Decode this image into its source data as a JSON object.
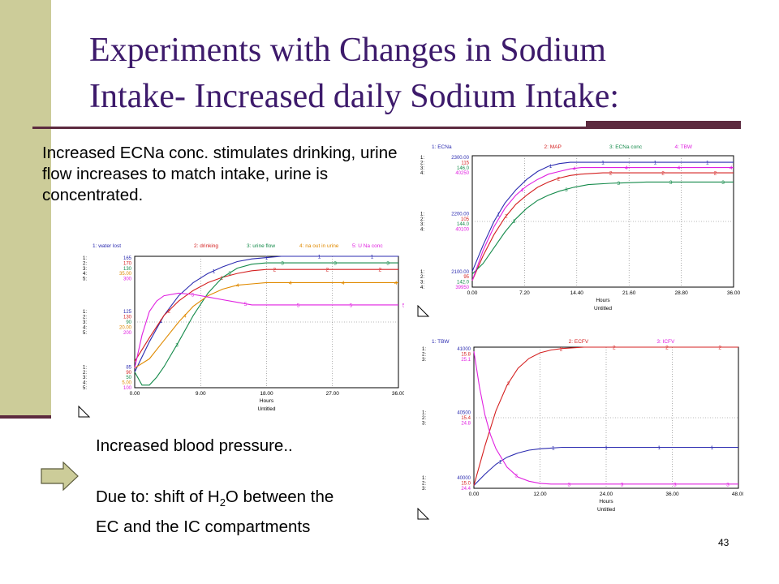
{
  "slide": {
    "title_line1": "Experiments with Changes in Sodium",
    "title_line2": "Intake- Increased daily Sodium Intake:",
    "intro_text": "Increased ECNa conc. stimulates drinking, urine flow increases to match intake, urine is concentrated.",
    "bp_text": "Increased blood pressure..",
    "due_prefix": "Due to: shift of H",
    "due_sub": "2",
    "due_mid": "O between the",
    "due_line2": "EC and the IC compartments",
    "page_number": "43"
  },
  "colors": {
    "title": "#3d1a6b",
    "sidebar": "#cccc99",
    "rule": "#5c2a3f",
    "series1": "#2b2bb0",
    "series2": "#d42020",
    "series3": "#148a4a",
    "series4": "#e020e0",
    "series5": "#e08a00"
  },
  "chart_data": [
    {
      "id": "left",
      "type": "line",
      "xlabel": "Hours",
      "footer": "Untitled",
      "xlim": [
        0,
        36
      ],
      "x_ticks": [
        "0.00",
        "9.00",
        "18.00",
        "27.00",
        "36.00"
      ],
      "legend": [
        {
          "label": "1: water lost",
          "color": "#2b2bb0"
        },
        {
          "label": "2: drinking",
          "color": "#d42020"
        },
        {
          "label": "3: urine flow",
          "color": "#148a4a"
        },
        {
          "label": "4: na out in urine",
          "color": "#e08a00"
        },
        {
          "label": "5: U Na conc",
          "color": "#e020e0"
        }
      ],
      "y_tick_groups": [
        {
          "labels": [
            "1:",
            "2:",
            "3:",
            "4:",
            "5:"
          ],
          "values": [
            "165",
            "170",
            "130",
            "35.00",
            "300"
          ]
        },
        {
          "labels": [
            "1:",
            "2:",
            "3:",
            "4:",
            "5:"
          ],
          "values": [
            "125",
            "130",
            "90",
            "20.00",
            "200"
          ]
        },
        {
          "labels": [
            "1:",
            "2:",
            "3:",
            "4:",
            "5:"
          ],
          "values": [
            "85",
            "90",
            "50",
            "5.00",
            "100"
          ]
        }
      ],
      "series": [
        {
          "name": "1",
          "color": "#2b2bb0",
          "x": [
            0,
            2,
            4,
            6,
            8,
            10,
            12,
            14,
            16,
            18,
            20,
            24,
            30,
            36
          ],
          "y": [
            0.12,
            0.35,
            0.55,
            0.7,
            0.8,
            0.87,
            0.92,
            0.96,
            0.98,
            0.99,
            1.0,
            1.0,
            1.0,
            1.0
          ]
        },
        {
          "name": "2",
          "color": "#d42020",
          "x": [
            0,
            2,
            4,
            6,
            8,
            10,
            12,
            14,
            16,
            18,
            20,
            24,
            30,
            36
          ],
          "y": [
            0.2,
            0.38,
            0.55,
            0.66,
            0.74,
            0.8,
            0.84,
            0.87,
            0.89,
            0.9,
            0.9,
            0.9,
            0.9,
            0.9
          ]
        },
        {
          "name": "3",
          "color": "#148a4a",
          "x": [
            0,
            1,
            2,
            3,
            4,
            6,
            8,
            10,
            12,
            14,
            16,
            18,
            20,
            24,
            30,
            36
          ],
          "y": [
            0.12,
            0.02,
            0.02,
            0.08,
            0.16,
            0.35,
            0.55,
            0.72,
            0.84,
            0.91,
            0.94,
            0.95,
            0.95,
            0.95,
            0.95,
            0.95
          ]
        },
        {
          "name": "4",
          "color": "#e08a00",
          "x": [
            0,
            2,
            4,
            6,
            8,
            10,
            12,
            14,
            16,
            18,
            20,
            24,
            30,
            36
          ],
          "y": [
            0.15,
            0.22,
            0.36,
            0.5,
            0.62,
            0.7,
            0.75,
            0.78,
            0.79,
            0.8,
            0.8,
            0.8,
            0.8,
            0.8
          ]
        },
        {
          "name": "5",
          "color": "#e020e0",
          "x": [
            0,
            1,
            2,
            3,
            4,
            6,
            8,
            10,
            12,
            14,
            16,
            18,
            20,
            24,
            30,
            36
          ],
          "y": [
            0.15,
            0.4,
            0.58,
            0.66,
            0.7,
            0.72,
            0.71,
            0.69,
            0.67,
            0.65,
            0.63,
            0.63,
            0.63,
            0.63,
            0.63,
            0.63
          ]
        }
      ]
    },
    {
      "id": "top-right",
      "type": "line",
      "xlabel": "Hours",
      "footer": "Untitled",
      "xlim": [
        0,
        36
      ],
      "x_ticks": [
        "0.00",
        "7.20",
        "14.40",
        "21.60",
        "28.80",
        "36.00"
      ],
      "legend": [
        {
          "label": "1: ECNa",
          "color": "#2b2bb0"
        },
        {
          "label": "2: MAP",
          "color": "#d42020"
        },
        {
          "label": "3: ECNa conc",
          "color": "#148a4a"
        },
        {
          "label": "4: TBW",
          "color": "#e020e0"
        }
      ],
      "y_tick_groups": [
        {
          "labels": [
            "1:",
            "2:",
            "3:",
            "4:"
          ],
          "values": [
            "2300.00",
            "115",
            "146.0",
            "40250"
          ]
        },
        {
          "labels": [
            "1:",
            "2:",
            "3:",
            "4:"
          ],
          "values": [
            "2200.00",
            "105",
            "144.0",
            "40100"
          ]
        },
        {
          "labels": [
            "1:",
            "2:",
            "3:",
            "4:"
          ],
          "values": [
            "2100.00",
            "95",
            "142.0",
            "39950"
          ]
        }
      ],
      "series": [
        {
          "name": "1",
          "color": "#2b2bb0",
          "x": [
            0,
            1.5,
            3,
            4.5,
            6,
            7.5,
            9,
            10.5,
            12,
            13.5,
            15,
            18,
            24,
            30,
            36
          ],
          "y": [
            0.12,
            0.32,
            0.5,
            0.64,
            0.74,
            0.82,
            0.88,
            0.92,
            0.94,
            0.95,
            0.95,
            0.95,
            0.95,
            0.95,
            0.95
          ]
        },
        {
          "name": "2",
          "color": "#d42020",
          "x": [
            0,
            1.5,
            3,
            4.5,
            6,
            7.5,
            9,
            10.5,
            12,
            13.5,
            15,
            18,
            24,
            30,
            36
          ],
          "y": [
            0.05,
            0.24,
            0.4,
            0.53,
            0.63,
            0.7,
            0.76,
            0.8,
            0.83,
            0.85,
            0.86,
            0.87,
            0.87,
            0.87,
            0.87
          ]
        },
        {
          "name": "3",
          "color": "#148a4a",
          "x": [
            0,
            1.5,
            3,
            4.5,
            6,
            7.5,
            9,
            10.5,
            12,
            14,
            16,
            19,
            24,
            30,
            36
          ],
          "y": [
            0.1,
            0.18,
            0.3,
            0.42,
            0.52,
            0.6,
            0.66,
            0.7,
            0.73,
            0.76,
            0.78,
            0.79,
            0.8,
            0.8,
            0.8
          ]
        },
        {
          "name": "4",
          "color": "#e020e0",
          "x": [
            0,
            1.5,
            3,
            4.5,
            6,
            7.5,
            9,
            10.5,
            12,
            13.5,
            15,
            18,
            24,
            30,
            36
          ],
          "y": [
            0.05,
            0.28,
            0.46,
            0.6,
            0.7,
            0.77,
            0.82,
            0.86,
            0.88,
            0.9,
            0.91,
            0.91,
            0.91,
            0.91,
            0.91
          ]
        }
      ]
    },
    {
      "id": "bottom-right",
      "type": "line",
      "xlabel": "Hours",
      "footer": "Untitled",
      "xlim": [
        0,
        48
      ],
      "x_ticks": [
        "0.00",
        "12.00",
        "24.00",
        "36.00",
        "48.00"
      ],
      "legend": [
        {
          "label": "1: TBW",
          "color": "#2b2bb0"
        },
        {
          "label": "2: ECFV",
          "color": "#d42020"
        },
        {
          "label": "3: ICFV",
          "color": "#e020e0"
        }
      ],
      "y_tick_groups": [
        {
          "labels": [
            "1:",
            "2:",
            "3:"
          ],
          "values": [
            "41000",
            "15.8",
            "25.1"
          ]
        },
        {
          "labels": [
            "1:",
            "2:",
            "3:"
          ],
          "values": [
            "40500",
            "15.4",
            "24.8"
          ]
        },
        {
          "labels": [
            "1:",
            "2:",
            "3:"
          ],
          "values": [
            "40000",
            "15.0",
            "24.4"
          ]
        }
      ],
      "series": [
        {
          "name": "1",
          "color": "#2b2bb0",
          "x": [
            0,
            2,
            4,
            6,
            8,
            10,
            12,
            14,
            16,
            20,
            24,
            30,
            36,
            42,
            48
          ],
          "y": [
            0.02,
            0.1,
            0.17,
            0.22,
            0.25,
            0.27,
            0.28,
            0.285,
            0.29,
            0.29,
            0.29,
            0.29,
            0.29,
            0.29,
            0.29
          ]
        },
        {
          "name": "2",
          "color": "#d42020",
          "x": [
            0,
            2,
            4,
            6,
            8,
            10,
            12,
            14,
            16,
            20,
            24,
            30,
            36,
            42,
            48
          ],
          "y": [
            0.02,
            0.3,
            0.55,
            0.73,
            0.85,
            0.92,
            0.96,
            0.98,
            0.99,
            1.0,
            1.0,
            1.0,
            1.0,
            1.0,
            1.0
          ]
        },
        {
          "name": "3",
          "color": "#e020e0",
          "x": [
            0,
            1,
            2,
            3,
            4,
            6,
            8,
            10,
            12,
            14,
            16,
            20,
            24,
            30,
            36,
            42,
            48
          ],
          "y": [
            0.97,
            0.72,
            0.52,
            0.38,
            0.28,
            0.15,
            0.08,
            0.05,
            0.035,
            0.03,
            0.03,
            0.03,
            0.03,
            0.03,
            0.03,
            0.03,
            0.03
          ]
        }
      ]
    }
  ]
}
